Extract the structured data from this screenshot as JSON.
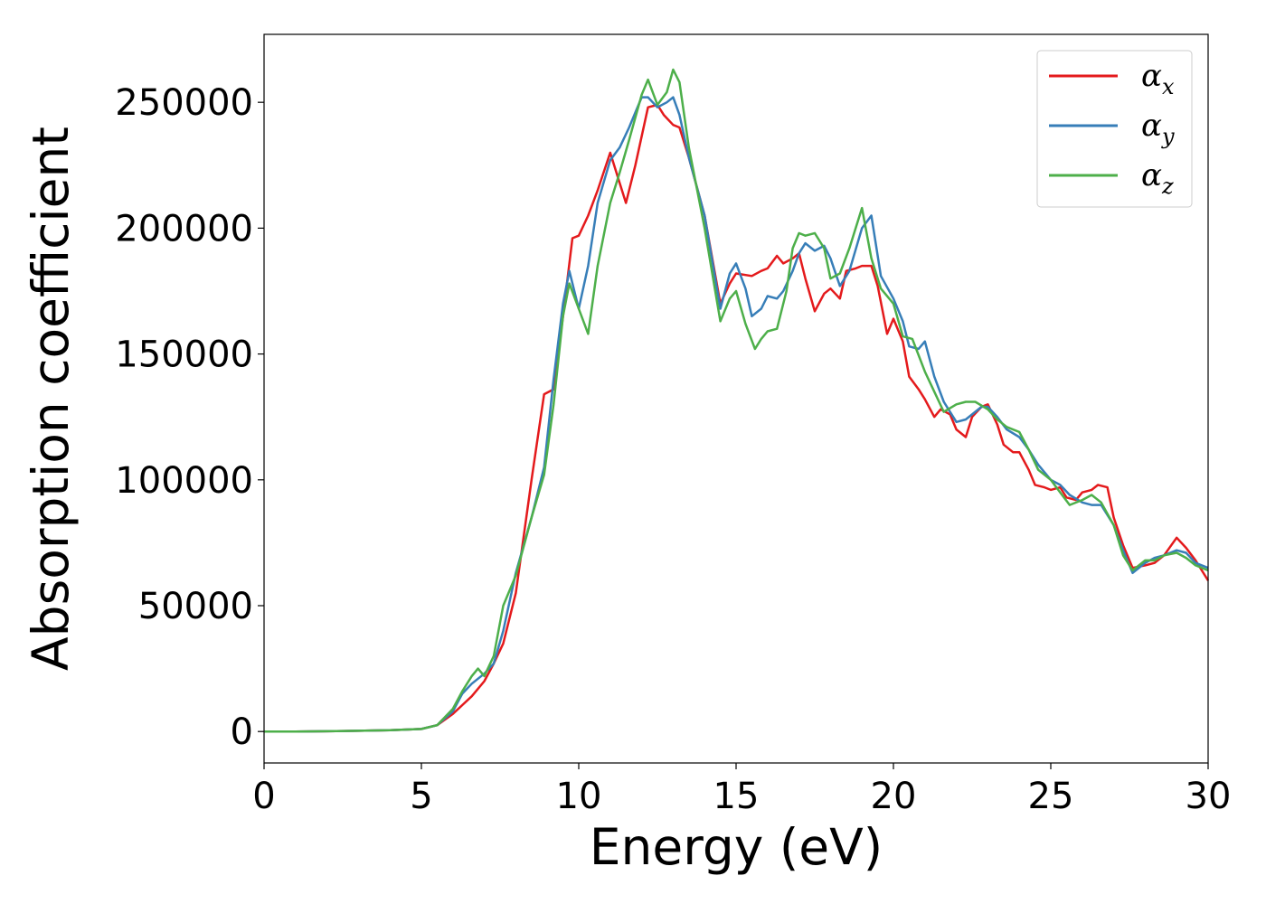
{
  "chart_data": {
    "type": "line",
    "xlabel": "Energy (eV)",
    "ylabel": "Absorption coefficient",
    "xlim": [
      0,
      30
    ],
    "ylim": [
      -12500,
      277000
    ],
    "xticks": [
      0,
      5,
      10,
      15,
      20,
      25,
      30
    ],
    "yticks": [
      0,
      50000,
      100000,
      150000,
      200000,
      250000
    ],
    "grid": false,
    "legend_position": "top-right",
    "series": [
      {
        "name": "α",
        "subscript": "x",
        "color": "#e41a1c",
        "x": [
          0,
          1,
          2,
          3,
          4,
          5,
          5.5,
          6,
          6.3,
          6.6,
          7,
          7.3,
          7.6,
          8,
          8.5,
          8.9,
          9.2,
          9.5,
          9.8,
          10,
          10.3,
          10.6,
          11,
          11.3,
          11.5,
          11.8,
          12.2,
          12.5,
          12.7,
          13,
          13.2,
          13.5,
          14,
          14.5,
          14.8,
          15,
          15.5,
          15.8,
          16,
          16.3,
          16.5,
          16.8,
          17,
          17.2,
          17.5,
          17.8,
          18,
          18.3,
          18.5,
          18.8,
          19,
          19.3,
          19.5,
          19.8,
          20,
          20.3,
          20.5,
          20.8,
          21,
          21.3,
          21.5,
          21.8,
          22,
          22.3,
          22.5,
          22.8,
          23,
          23.3,
          23.5,
          23.8,
          24,
          24.3,
          24.5,
          24.8,
          25,
          25.3,
          25.5,
          25.8,
          26,
          26.3,
          26.5,
          26.8,
          27,
          27.3,
          27.6,
          28,
          28.3,
          28.6,
          29,
          29.3,
          29.6,
          30
        ],
        "y": [
          0,
          0,
          100,
          300,
          500,
          1000,
          2500,
          7000,
          10500,
          14000,
          20000,
          27000,
          35000,
          55000,
          100000,
          134000,
          136000,
          165000,
          196000,
          197000,
          205000,
          215000,
          230000,
          218000,
          210000,
          225000,
          248000,
          249000,
          245000,
          241000,
          240000,
          228000,
          205000,
          170000,
          178000,
          182000,
          181000,
          183000,
          184000,
          189000,
          186000,
          188000,
          190000,
          180000,
          167000,
          174000,
          176000,
          172000,
          183000,
          184000,
          185000,
          185000,
          177000,
          158000,
          164000,
          155000,
          141000,
          136000,
          132000,
          125000,
          128000,
          126000,
          120000,
          117000,
          125000,
          129000,
          130000,
          122000,
          114000,
          111000,
          111000,
          104000,
          98000,
          97000,
          96000,
          97000,
          93000,
          92000,
          95000,
          96000,
          98000,
          97000,
          85000,
          74000,
          65000,
          66000,
          67000,
          70000,
          77000,
          73000,
          68000,
          60000
        ]
      },
      {
        "name": "α",
        "subscript": "y",
        "color": "#377eb8",
        "x": [
          0,
          1,
          2,
          3,
          4,
          5,
          5.5,
          6,
          6.3,
          6.6,
          7,
          7.3,
          7.6,
          8,
          8.5,
          8.9,
          9.2,
          9.5,
          9.7,
          10,
          10.3,
          10.6,
          11,
          11.3,
          11.6,
          12,
          12.2,
          12.5,
          12.8,
          13,
          13.2,
          13.5,
          14,
          14.5,
          14.8,
          15,
          15.3,
          15.5,
          15.8,
          16,
          16.3,
          16.5,
          16.8,
          17,
          17.2,
          17.5,
          17.8,
          18,
          18.3,
          18.6,
          19,
          19.3,
          19.6,
          20,
          20.3,
          20.5,
          20.8,
          21,
          21.3,
          21.6,
          22,
          22.3,
          22.5,
          22.8,
          23,
          23.3,
          23.6,
          24,
          24.3,
          24.6,
          25,
          25.3,
          25.6,
          26,
          26.3,
          26.6,
          27,
          27.3,
          27.6,
          28,
          28.3,
          28.6,
          29,
          29.3,
          29.6,
          30
        ],
        "y": [
          0,
          0,
          100,
          300,
          500,
          1000,
          2500,
          8000,
          15000,
          19000,
          23000,
          27000,
          40000,
          63000,
          85000,
          105000,
          140000,
          170000,
          183000,
          168000,
          185000,
          210000,
          227000,
          232000,
          240000,
          252000,
          252000,
          248000,
          250000,
          252000,
          245000,
          228000,
          205000,
          168000,
          182000,
          186000,
          176000,
          165000,
          168000,
          173000,
          172000,
          175000,
          183000,
          190000,
          194000,
          191000,
          193000,
          188000,
          177000,
          183000,
          200000,
          205000,
          181000,
          172000,
          163000,
          153000,
          152000,
          155000,
          141000,
          131000,
          123000,
          124000,
          126000,
          129000,
          129000,
          125000,
          120000,
          117000,
          112000,
          106000,
          100000,
          98000,
          94000,
          91000,
          90000,
          90000,
          82000,
          72000,
          63000,
          67000,
          69000,
          70000,
          72000,
          71000,
          67000,
          65000
        ]
      },
      {
        "name": "α",
        "subscript": "z",
        "color": "#4daf4a",
        "x": [
          0,
          1,
          2,
          3,
          4,
          5,
          5.5,
          6,
          6.3,
          6.6,
          6.8,
          7,
          7.3,
          7.6,
          8,
          8.5,
          8.9,
          9.2,
          9.5,
          9.7,
          10,
          10.3,
          10.6,
          11,
          11.3,
          11.6,
          12,
          12.2,
          12.5,
          12.8,
          13,
          13.2,
          13.5,
          14,
          14.5,
          14.8,
          15,
          15.3,
          15.6,
          15.8,
          16,
          16.3,
          16.6,
          16.8,
          17,
          17.2,
          17.5,
          17.8,
          18,
          18.3,
          18.6,
          19,
          19.3,
          19.6,
          20,
          20.3,
          20.6,
          21,
          21.3,
          21.6,
          22,
          22.3,
          22.6,
          23,
          23.3,
          23.6,
          24,
          24.3,
          24.6,
          25,
          25.3,
          25.6,
          26,
          26.3,
          26.6,
          27,
          27.3,
          27.6,
          28,
          28.3,
          28.6,
          29,
          29.3,
          29.6,
          30
        ],
        "y": [
          0,
          0,
          100,
          300,
          500,
          1000,
          2500,
          9000,
          16000,
          22000,
          25000,
          22000,
          30000,
          50000,
          62000,
          85000,
          102000,
          130000,
          165000,
          178000,
          168000,
          158000,
          185000,
          210000,
          222000,
          235000,
          253000,
          259000,
          249000,
          254000,
          263000,
          258000,
          232000,
          200000,
          163000,
          172000,
          175000,
          162000,
          152000,
          156000,
          159000,
          160000,
          175000,
          192000,
          198000,
          197000,
          198000,
          192000,
          180000,
          182000,
          192000,
          208000,
          188000,
          176000,
          170000,
          157000,
          156000,
          143000,
          135000,
          127000,
          130000,
          131000,
          131000,
          128000,
          124000,
          121000,
          119000,
          112000,
          104000,
          100000,
          95000,
          90000,
          92000,
          94000,
          91000,
          82000,
          70000,
          64000,
          68000,
          68000,
          70000,
          71000,
          69000,
          66000,
          64000
        ]
      }
    ]
  }
}
